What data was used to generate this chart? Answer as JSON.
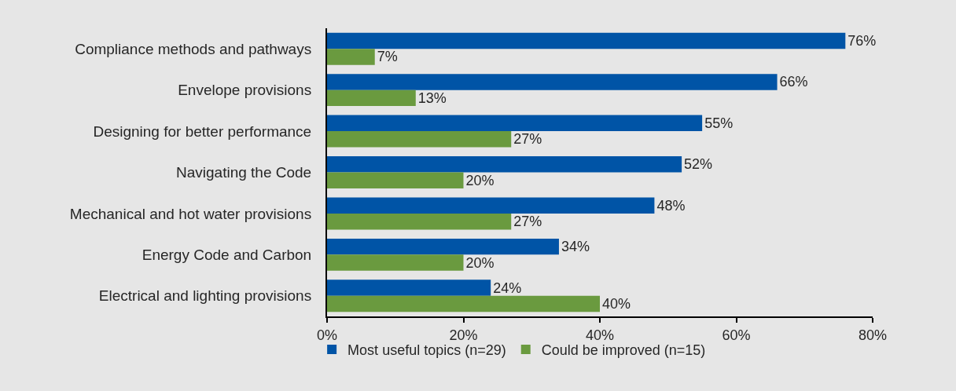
{
  "chart_data": {
    "type": "bar",
    "orientation": "horizontal",
    "categories": [
      "Compliance methods and pathways",
      "Envelope provisions",
      "Designing for better performance",
      "Navigating the Code",
      "Mechanical and hot water provisions",
      "Energy Code and Carbon",
      "Electrical and lighting provisions"
    ],
    "series": [
      {
        "name": "Most useful topics (n=29)",
        "color": "#0054a6",
        "values": [
          76,
          66,
          55,
          52,
          48,
          34,
          24
        ],
        "value_labels": [
          "76%",
          "66%",
          "55%",
          "52%",
          "48%",
          "34%",
          "24%"
        ]
      },
      {
        "name": "Could be improved (n=15)",
        "color": "#6a9a3f",
        "values": [
          7,
          13,
          27,
          20,
          27,
          20,
          40
        ],
        "value_labels": [
          "7%",
          "13%",
          "27%",
          "20%",
          "27%",
          "20%",
          "40%"
        ]
      }
    ],
    "xlim": [
      0,
      80
    ],
    "xticks": [
      {
        "value": 0,
        "label": "0%"
      },
      {
        "value": 20,
        "label": "20%"
      },
      {
        "value": 40,
        "label": "40%"
      },
      {
        "value": 60,
        "label": "60%"
      },
      {
        "value": 80,
        "label": "80%"
      }
    ],
    "legend": "bottom"
  }
}
